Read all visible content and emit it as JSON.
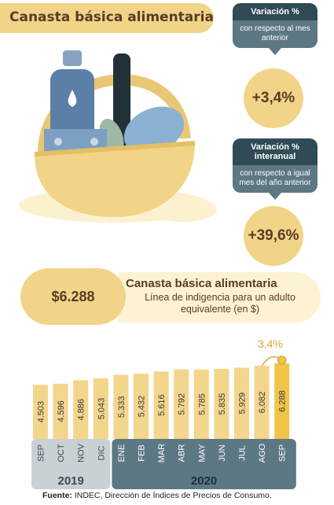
{
  "header": {
    "title": "Canasta básica alimentaria"
  },
  "monthly": {
    "heading": "Variación %",
    "description": "con respecto al mes anterior",
    "value": "+3,4%"
  },
  "yearly": {
    "heading": "Variación % interanual",
    "description": "con respecto a igual mes del año anterior",
    "value": "+39,6%"
  },
  "summary": {
    "price": "$6.288",
    "title": "Canasta básica alimentaria",
    "subtitle": "Línea de indigencia para un adulto equivalente (en $)"
  },
  "chart_data": {
    "type": "bar",
    "title": "",
    "xlabel": "",
    "ylabel": "",
    "categories": [
      "SEP",
      "OCT",
      "NOV",
      "DIC",
      "ENE",
      "FEB",
      "MAR",
      "ABR",
      "MAY",
      "JUN",
      "JUL",
      "AGO",
      "SEP"
    ],
    "values": [
      4503,
      4596,
      4886,
      5043,
      5333,
      5432,
      5616,
      5792,
      5785,
      5835,
      5929,
      6082,
      6288
    ],
    "value_labels": [
      "4.503",
      "4.596",
      "4.886",
      "5.043",
      "5.333",
      "5.432",
      "5.616",
      "5.792",
      "5.785",
      "5.835",
      "5.929",
      "6.082",
      "6.288"
    ],
    "year_groups": [
      {
        "label": "2019",
        "from": 0,
        "to": 3
      },
      {
        "label": "2020",
        "from": 4,
        "to": 12
      }
    ],
    "annotation": {
      "label": "3,4%",
      "from": 11,
      "to": 12
    },
    "colors": {
      "bar": "#f3d58c",
      "highlight": "#f0c54a",
      "axis_2019": "#c9d1d4",
      "axis_2020": "#5c7883"
    },
    "grid": false
  },
  "footer": {
    "source_label": "Fuente:",
    "source_text": " INDEC, Dirección de Índices de Precios de Consumo."
  }
}
